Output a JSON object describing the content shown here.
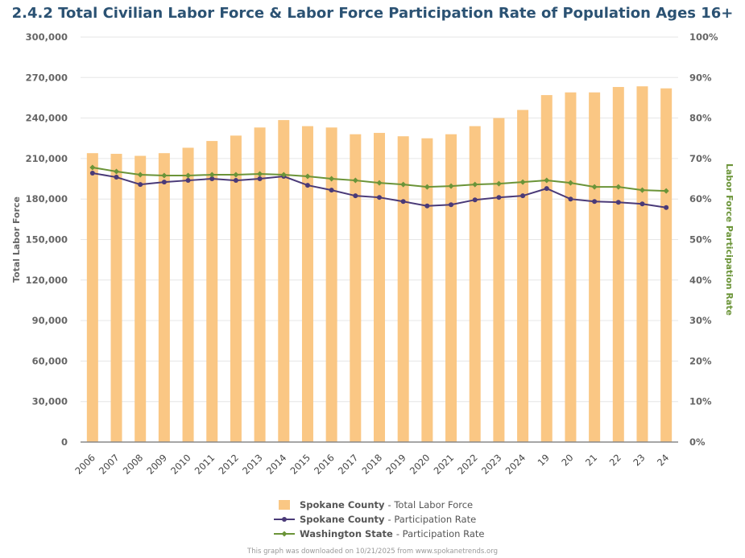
{
  "title": "2.4.2 Total Civilian Labor Force & Labor Force Participation Rate of Population Ages 16+",
  "footer": "This graph was downloaded on 10/21/2025 from www.spokanetrends.org",
  "chart_data": {
    "type": "bar+line",
    "title": "2.4.2 Total Civilian Labor Force & Labor Force Participation Rate of Population Ages 16+",
    "categories": [
      "2006",
      "2007",
      "2008",
      "2009",
      "2010",
      "2011",
      "2012",
      "2013",
      "2014",
      "2015",
      "2016",
      "2017",
      "2018",
      "2019",
      "2020",
      "2021",
      "2022",
      "2023",
      "2024",
      "19",
      "20",
      "21",
      "22",
      "23",
      "24"
    ],
    "ylabel": "Total Labor Force",
    "ylabel_right": "Labor Force Participation Rate",
    "ylim": [
      0,
      300000
    ],
    "ylim_right": [
      0,
      100
    ],
    "yticks": [
      "0",
      "30,000",
      "60,000",
      "90,000",
      "120,000",
      "150,000",
      "180,000",
      "210,000",
      "240,000",
      "270,000",
      "300,000"
    ],
    "yticks_right": [
      "0%",
      "10%",
      "20%",
      "30%",
      "40%",
      "50%",
      "60%",
      "70%",
      "80%",
      "90%",
      "100%"
    ],
    "grid": true,
    "legend_position": "bottom",
    "series": [
      {
        "name": "Spokane County",
        "suffix": " - Total Labor Force",
        "type": "bar",
        "axis": "left",
        "color": "#fac784",
        "values": [
          214000,
          213500,
          212000,
          214000,
          218000,
          223000,
          227000,
          233000,
          238500,
          234000,
          233000,
          228000,
          229000,
          226500,
          225000,
          228000,
          234000,
          240000,
          246000,
          257000,
          259000,
          259000,
          263000,
          263500,
          262000
        ]
      },
      {
        "name": "Spokane County",
        "suffix": " - Participation Rate",
        "type": "line",
        "axis": "right",
        "color": "#4a3a78",
        "values": [
          66.4,
          65.4,
          63.6,
          64.2,
          64.6,
          65.0,
          64.6,
          65.0,
          65.6,
          63.4,
          62.2,
          60.8,
          60.4,
          59.4,
          58.3,
          58.6,
          59.8,
          60.4,
          60.8,
          62.6,
          60.0,
          59.4,
          59.2,
          58.8,
          57.9
        ]
      },
      {
        "name": "Washington State",
        "suffix": " - Participation Rate",
        "type": "line",
        "axis": "right",
        "color": "#6b9438",
        "values": [
          67.8,
          66.8,
          66.0,
          65.8,
          65.8,
          66.0,
          66.0,
          66.2,
          66.0,
          65.6,
          65.0,
          64.6,
          64.0,
          63.6,
          63.0,
          63.2,
          63.6,
          63.8,
          64.2,
          64.6,
          64.0,
          63.0,
          63.0,
          62.2,
          62.0
        ]
      }
    ]
  }
}
